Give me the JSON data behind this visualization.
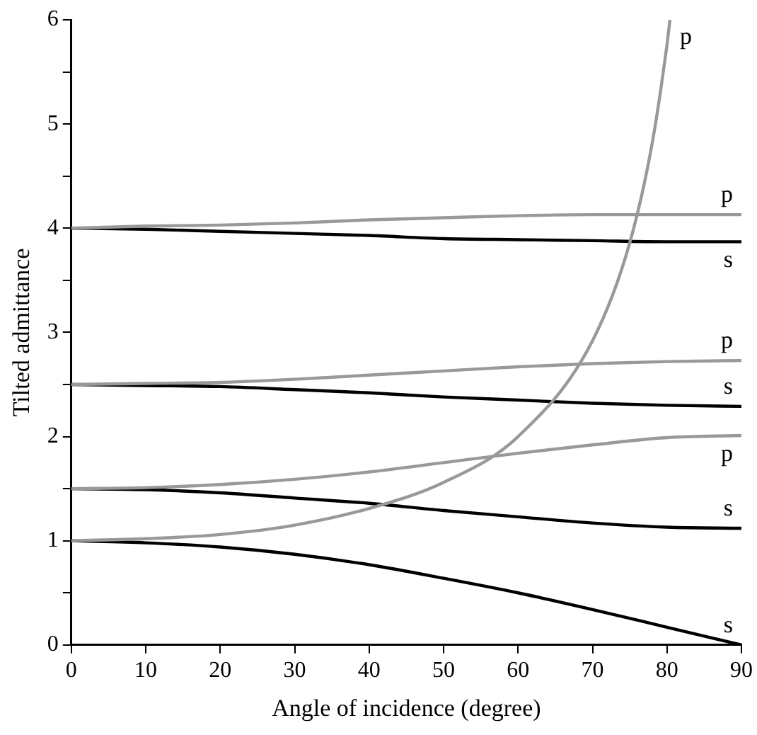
{
  "chart_data": {
    "type": "line",
    "xlabel": "Angle of incidence (degree)",
    "ylabel": "Tilted admittance",
    "xlim": [
      0,
      90
    ],
    "xticks": [
      0,
      10,
      20,
      30,
      40,
      50,
      60,
      70,
      80,
      90
    ],
    "ylim": [
      0,
      6
    ],
    "yticks": [
      0,
      {
        "value": 0.5,
        "label": null
      },
      1,
      {
        "value": 1.5,
        "label": null
      },
      2,
      {
        "value": 2.5,
        "label": null
      },
      3,
      {
        "value": 3.5,
        "label": null
      },
      4,
      {
        "value": 4.5,
        "label": null
      },
      5,
      {
        "value": 5.5,
        "label": null
      },
      6
    ],
    "grid": false,
    "legend": false,
    "marker": "none",
    "line_style": "solid",
    "series": [
      {
        "name": "p",
        "color": "#999999",
        "x": [
          0,
          10,
          20,
          30,
          40,
          50,
          60,
          70,
          75,
          78,
          80,
          80.4
        ],
        "values": [
          1,
          1.02,
          1.06,
          1.15,
          1.31,
          1.56,
          2,
          2.92,
          3.86,
          4.81,
          5.76,
          6
        ]
      },
      {
        "name": "p",
        "color": "#999999",
        "x": [
          0,
          10,
          20,
          30,
          40,
          50,
          60,
          70,
          80,
          90
        ],
        "values": [
          4,
          4.02,
          4.03,
          4.05,
          4.08,
          4.1,
          4.12,
          4.13,
          4.13,
          4.13
        ]
      },
      {
        "name": "s",
        "color": "#000000",
        "x": [
          0,
          10,
          20,
          30,
          40,
          50,
          60,
          70,
          80,
          90
        ],
        "values": [
          4,
          3.99,
          3.97,
          3.95,
          3.93,
          3.9,
          3.89,
          3.88,
          3.87,
          3.87
        ]
      },
      {
        "name": "p",
        "color": "#999999",
        "x": [
          0,
          10,
          20,
          30,
          40,
          50,
          60,
          70,
          80,
          90
        ],
        "values": [
          2.5,
          2.51,
          2.52,
          2.55,
          2.59,
          2.63,
          2.67,
          2.7,
          2.72,
          2.73
        ]
      },
      {
        "name": "s",
        "color": "#000000",
        "x": [
          0,
          10,
          20,
          30,
          40,
          50,
          60,
          70,
          80,
          90
        ],
        "values": [
          2.5,
          2.49,
          2.48,
          2.45,
          2.42,
          2.38,
          2.35,
          2.32,
          2.3,
          2.29
        ]
      },
      {
        "name": "p",
        "color": "#999999",
        "x": [
          0,
          10,
          20,
          30,
          40,
          50,
          60,
          70,
          80,
          90
        ],
        "values": [
          1.5,
          1.51,
          1.54,
          1.59,
          1.66,
          1.75,
          1.84,
          1.92,
          1.99,
          2.01
        ]
      },
      {
        "name": "s",
        "color": "#000000",
        "x": [
          0,
          10,
          20,
          30,
          40,
          50,
          60,
          70,
          80,
          90
        ],
        "values": [
          1.5,
          1.49,
          1.46,
          1.41,
          1.36,
          1.29,
          1.23,
          1.17,
          1.13,
          1.12
        ]
      },
      {
        "name": "s",
        "color": "#000000",
        "x": [
          0,
          10,
          20,
          30,
          40,
          50,
          60,
          70,
          80,
          90
        ],
        "values": [
          1,
          0.98,
          0.94,
          0.87,
          0.77,
          0.64,
          0.5,
          0.34,
          0.17,
          0
        ]
      }
    ]
  }
}
